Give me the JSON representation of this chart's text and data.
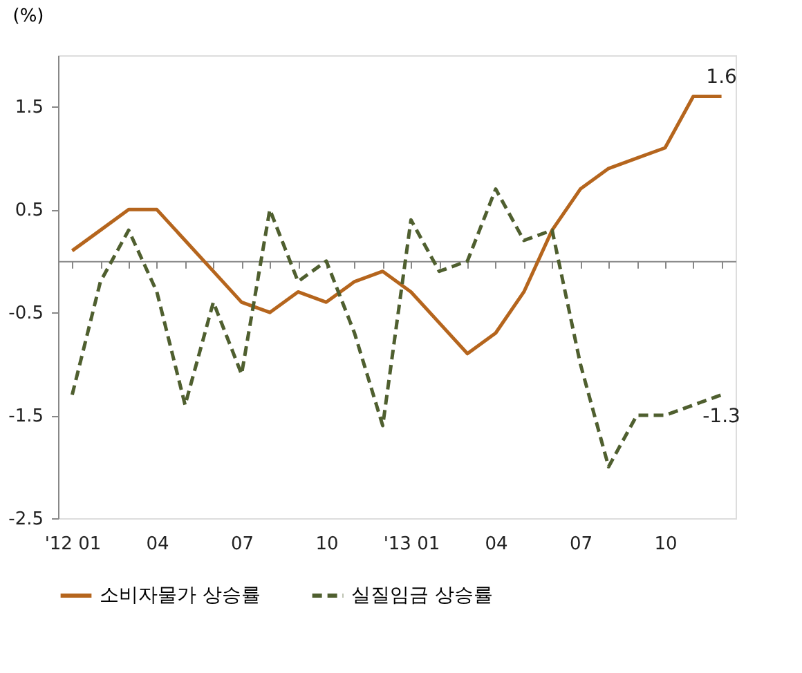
{
  "chart_data": {
    "type": "line",
    "ylabel": "(%)",
    "categories": [
      "'12 01",
      null,
      null,
      "04",
      null,
      null,
      "07",
      null,
      null,
      "10",
      null,
      null,
      "'13 01",
      null,
      null,
      "04",
      null,
      null,
      "07",
      null,
      null,
      "10",
      null,
      null
    ],
    "series": [
      {
        "name": "소비자물가 상승률",
        "color": "#b5651d",
        "line_style": "solid",
        "values": [
          0.1,
          0.3,
          0.5,
          0.5,
          0.2,
          -0.1,
          -0.4,
          -0.5,
          -0.3,
          -0.4,
          -0.2,
          -0.1,
          -0.3,
          -0.6,
          -0.9,
          -0.7,
          -0.3,
          0.3,
          0.7,
          0.9,
          1.0,
          1.1,
          1.6,
          1.6
        ],
        "value_labels": [
          null,
          null,
          null,
          null,
          null,
          null,
          null,
          null,
          null,
          null,
          null,
          null,
          null,
          null,
          null,
          null,
          null,
          null,
          null,
          null,
          null,
          null,
          null,
          "1.6"
        ]
      },
      {
        "name": "실질임금 상승률",
        "color": "#4f5f2f",
        "line_style": "dashed",
        "values": [
          -1.3,
          -0.2,
          0.3,
          -0.3,
          -1.4,
          -0.4,
          -1.1,
          0.5,
          -0.2,
          0.0,
          -0.7,
          -1.6,
          0.4,
          -0.1,
          0.0,
          0.7,
          0.2,
          0.3,
          -1.0,
          -2.0,
          -1.5,
          -1.5,
          -1.4,
          -1.3
        ],
        "value_labels": [
          null,
          null,
          null,
          null,
          null,
          null,
          null,
          null,
          null,
          null,
          null,
          null,
          null,
          null,
          null,
          null,
          null,
          null,
          null,
          null,
          null,
          null,
          null,
          "-1.3"
        ]
      }
    ],
    "ylim": [
      -2.5,
      2.0
    ],
    "yticks": [
      -2.5,
      -1.5,
      -0.5,
      0.5,
      1.5
    ],
    "grid": false,
    "legend": "bottom",
    "marker": "none"
  }
}
